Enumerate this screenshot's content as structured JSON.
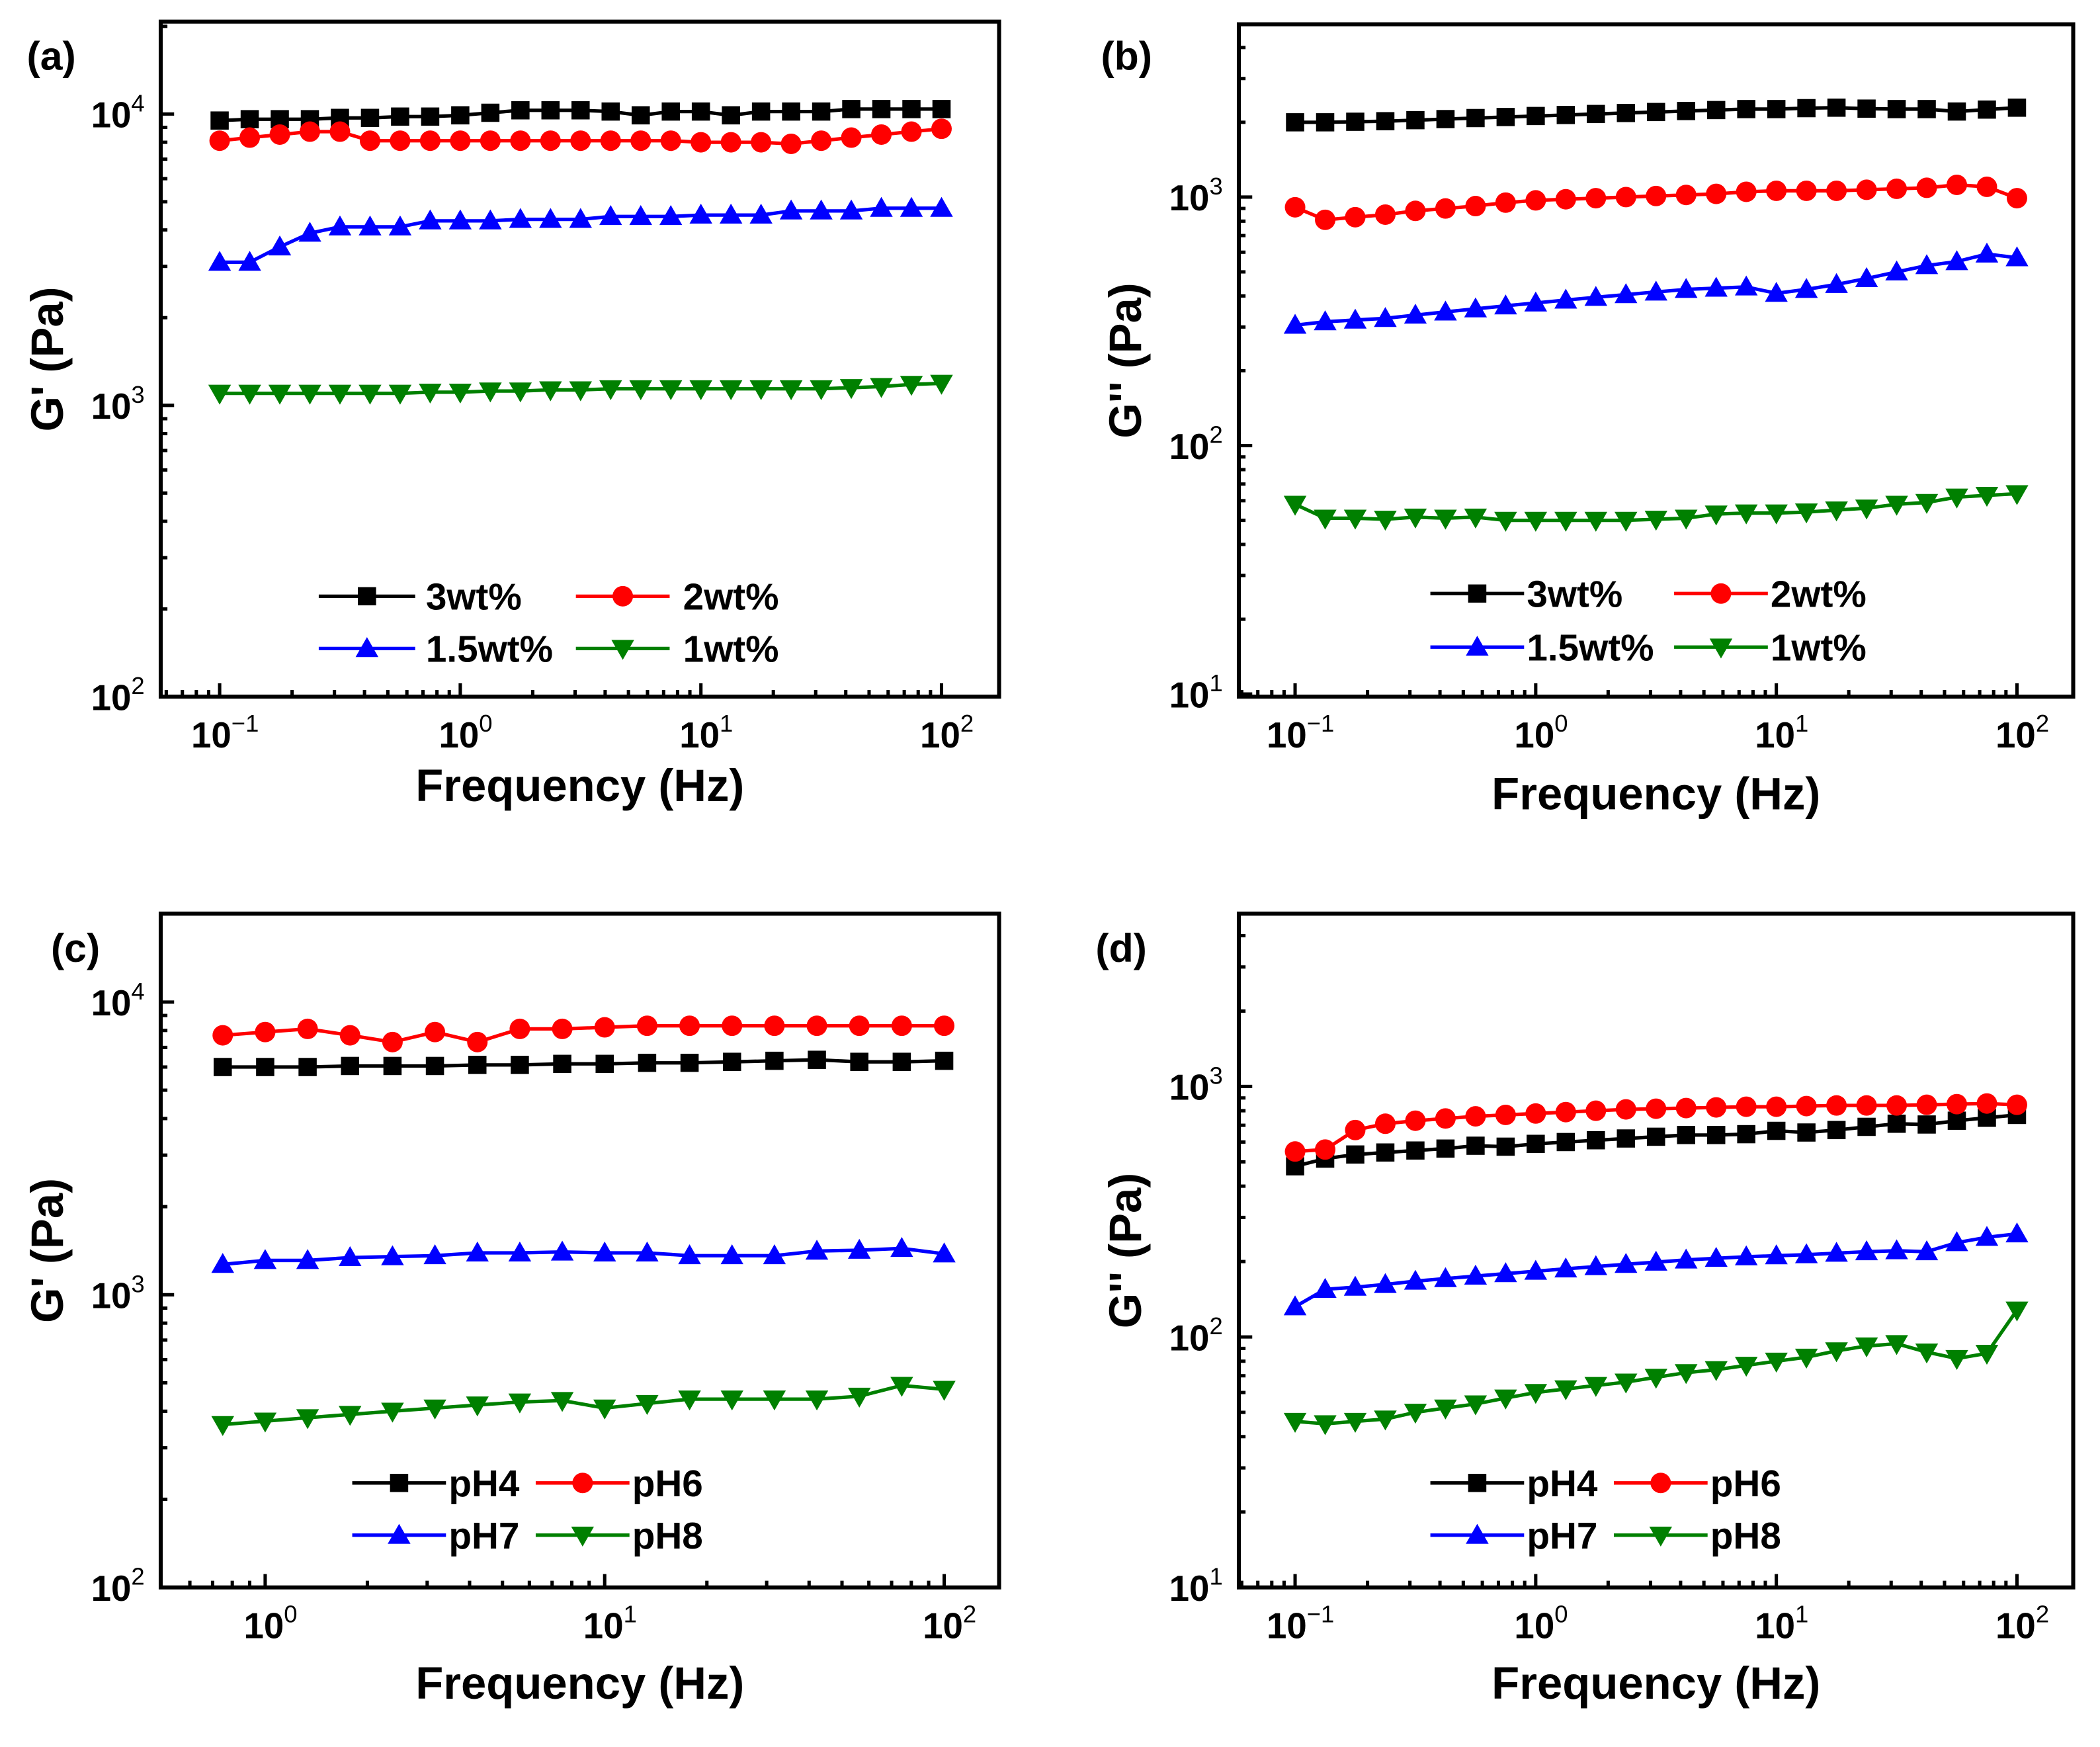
{
  "chart_data": [
    {
      "type": "line",
      "panel_label": "(a)",
      "xlabel": "Frequency (Hz)",
      "ylabel": "G' (Pa)",
      "xscale": "log",
      "yscale": "log",
      "xlim": [
        0.057,
        173
      ],
      "ylim": [
        100,
        20700
      ],
      "xticks": [
        {
          "base": "10",
          "exp": "-1",
          "value": 0.1
        },
        {
          "base": "10",
          "exp": "0",
          "value": 1
        },
        {
          "base": "10",
          "exp": "1",
          "value": 10
        },
        {
          "base": "10",
          "exp": "2",
          "value": 100
        }
      ],
      "yticks": [
        {
          "base": "10",
          "exp": "2",
          "value": 100
        },
        {
          "base": "10",
          "exp": "3",
          "value": 1000
        },
        {
          "base": "10",
          "exp": "4",
          "value": 10000
        }
      ],
      "x_start_exp": -1,
      "n_points": 25,
      "legend_position": "bottom-center",
      "series": [
        {
          "name": "3wt%",
          "color": "#000000",
          "marker": "square",
          "values": [
            9500,
            9600,
            9600,
            9600,
            9700,
            9700,
            9800,
            9800,
            9900,
            10100,
            10300,
            10300,
            10300,
            10200,
            9900,
            10200,
            10200,
            9900,
            10200,
            10200,
            10200,
            10400,
            10400,
            10400,
            10400
          ]
        },
        {
          "name": "2wt%",
          "color": "#ff0000",
          "marker": "circle",
          "values": [
            8100,
            8300,
            8500,
            8700,
            8700,
            8100,
            8100,
            8100,
            8100,
            8100,
            8100,
            8100,
            8100,
            8100,
            8100,
            8100,
            8000,
            8000,
            8000,
            7900,
            8100,
            8300,
            8500,
            8700,
            8900
          ]
        },
        {
          "name": "1.5wt%",
          "color": "#0000ff",
          "marker": "triangle-up",
          "values": [
            3100,
            3100,
            3500,
            3900,
            4100,
            4100,
            4100,
            4300,
            4300,
            4300,
            4350,
            4350,
            4350,
            4450,
            4450,
            4450,
            4500,
            4500,
            4500,
            4650,
            4650,
            4650,
            4750,
            4750,
            4750
          ]
        },
        {
          "name": "1wt%",
          "color": "#008000",
          "marker": "triangle-down",
          "values": [
            1100,
            1100,
            1100,
            1100,
            1100,
            1100,
            1100,
            1110,
            1110,
            1120,
            1120,
            1130,
            1130,
            1140,
            1140,
            1140,
            1140,
            1140,
            1140,
            1140,
            1140,
            1150,
            1160,
            1180,
            1190
          ]
        }
      ]
    },
    {
      "type": "line",
      "panel_label": "(b)",
      "xlabel": "Frequency (Hz)",
      "ylabel": "G'' (Pa)",
      "xscale": "log",
      "yscale": "log",
      "xlim": [
        0.057,
        173
      ],
      "ylim": [
        10,
        4950
      ],
      "xticks": [
        {
          "base": "10",
          "exp": "-1",
          "value": 0.1
        },
        {
          "base": "10",
          "exp": "0",
          "value": 1
        },
        {
          "base": "10",
          "exp": "1",
          "value": 10
        },
        {
          "base": "10",
          "exp": "2",
          "value": 100
        }
      ],
      "yticks": [
        {
          "base": "10",
          "exp": "1",
          "value": 10
        },
        {
          "base": "10",
          "exp": "2",
          "value": 100
        },
        {
          "base": "10",
          "exp": "3",
          "value": 1000
        }
      ],
      "x_start_exp": -1,
      "n_points": 25,
      "legend_position": "bottom-center",
      "series": [
        {
          "name": "3wt%",
          "color": "#000000",
          "marker": "square",
          "values": [
            2000,
            2000,
            2010,
            2020,
            2040,
            2060,
            2080,
            2100,
            2120,
            2140,
            2160,
            2180,
            2200,
            2220,
            2240,
            2260,
            2260,
            2280,
            2290,
            2270,
            2260,
            2260,
            2210,
            2250,
            2290
          ]
        },
        {
          "name": "2wt%",
          "color": "#ff0000",
          "marker": "circle",
          "values": [
            910,
            810,
            830,
            850,
            880,
            900,
            920,
            950,
            970,
            980,
            990,
            1000,
            1010,
            1020,
            1030,
            1050,
            1060,
            1060,
            1060,
            1070,
            1080,
            1090,
            1120,
            1100,
            990
          ]
        },
        {
          "name": "1.5wt%",
          "color": "#0000ff",
          "marker": "triangle-up",
          "values": [
            305,
            315,
            320,
            325,
            335,
            345,
            355,
            365,
            375,
            385,
            395,
            405,
            415,
            425,
            430,
            435,
            410,
            425,
            445,
            470,
            500,
            530,
            550,
            590,
            570
          ]
        },
        {
          "name": "1wt%",
          "color": "#008000",
          "marker": "triangle-down",
          "values": [
            58,
            51,
            51,
            50.5,
            51.5,
            51,
            51.5,
            50,
            50,
            50,
            50,
            50,
            50.5,
            51,
            53,
            53.5,
            53.5,
            54,
            55,
            56,
            58,
            59,
            62,
            63,
            64
          ]
        }
      ]
    },
    {
      "type": "line",
      "panel_label": "(c)",
      "xlabel": "Frequency (Hz)",
      "ylabel": "G' (Pa)",
      "xscale": "log",
      "yscale": "log",
      "xlim": [
        0.49,
        145
      ],
      "ylim": [
        100,
        20700
      ],
      "xticks": [
        {
          "base": "10",
          "exp": "0",
          "value": 1
        },
        {
          "base": "10",
          "exp": "1",
          "value": 10
        },
        {
          "base": "10",
          "exp": "2",
          "value": 100
        }
      ],
      "yticks": [
        {
          "base": "10",
          "exp": "2",
          "value": 100
        },
        {
          "base": "10",
          "exp": "3",
          "value": 1000
        },
        {
          "base": "10",
          "exp": "4",
          "value": 10000
        }
      ],
      "x_start_exp": -0.125,
      "n_points": 18,
      "legend_position": "bottom-center",
      "series": [
        {
          "name": "pH4",
          "color": "#000000",
          "marker": "square",
          "values": [
            6000,
            6000,
            6000,
            6050,
            6050,
            6050,
            6100,
            6100,
            6150,
            6150,
            6200,
            6200,
            6250,
            6300,
            6350,
            6250,
            6250,
            6300
          ]
        },
        {
          "name": "pH6",
          "color": "#ff0000",
          "marker": "circle",
          "values": [
            7700,
            7900,
            8100,
            7700,
            7300,
            7900,
            7300,
            8100,
            8100,
            8200,
            8300,
            8300,
            8300,
            8300,
            8300,
            8300,
            8300,
            8300
          ]
        },
        {
          "name": "pH7",
          "color": "#0000ff",
          "marker": "triangle-up",
          "values": [
            1270,
            1310,
            1310,
            1340,
            1350,
            1360,
            1390,
            1390,
            1400,
            1390,
            1390,
            1360,
            1360,
            1360,
            1410,
            1420,
            1440,
            1380
          ]
        },
        {
          "name": "pH8",
          "color": "#008000",
          "marker": "triangle-down",
          "values": [
            360,
            370,
            380,
            390,
            400,
            410,
            420,
            430,
            435,
            410,
            425,
            440,
            440,
            440,
            440,
            450,
            490,
            475
          ]
        }
      ]
    },
    {
      "type": "line",
      "panel_label": "(d)",
      "xlabel": "Frequency (Hz)",
      "ylabel": "G'' (Pa)",
      "xscale": "log",
      "yscale": "log",
      "xlim": [
        0.057,
        173
      ],
      "ylim": [
        10,
        4900
      ],
      "xticks": [
        {
          "base": "10",
          "exp": "-1",
          "value": 0.1
        },
        {
          "base": "10",
          "exp": "0",
          "value": 1
        },
        {
          "base": "10",
          "exp": "1",
          "value": 10
        },
        {
          "base": "10",
          "exp": "2",
          "value": 100
        }
      ],
      "yticks": [
        {
          "base": "10",
          "exp": "1",
          "value": 10
        },
        {
          "base": "10",
          "exp": "2",
          "value": 100
        },
        {
          "base": "10",
          "exp": "3",
          "value": 1000
        }
      ],
      "x_start_exp": -1,
      "n_points": 25,
      "legend_position": "bottom-center",
      "series": [
        {
          "name": "pH4",
          "color": "#000000",
          "marker": "square",
          "values": [
            480,
            515,
            535,
            545,
            555,
            565,
            580,
            575,
            590,
            600,
            610,
            620,
            630,
            640,
            640,
            645,
            665,
            655,
            670,
            690,
            710,
            705,
            730,
            750,
            770
          ]
        },
        {
          "name": "pH6",
          "color": "#ff0000",
          "marker": "circle",
          "values": [
            550,
            560,
            670,
            710,
            730,
            745,
            760,
            770,
            780,
            790,
            800,
            810,
            815,
            820,
            825,
            830,
            830,
            835,
            840,
            840,
            840,
            845,
            850,
            855,
            845
          ]
        },
        {
          "name": "pH7",
          "color": "#0000ff",
          "marker": "triangle-up",
          "values": [
            132,
            155,
            158,
            162,
            167,
            171,
            175,
            179,
            183,
            187,
            191,
            195,
            199,
            203,
            206,
            209,
            211,
            213,
            216,
            219,
            221,
            219,
            238,
            250,
            258
          ]
        },
        {
          "name": "pH8",
          "color": "#008000",
          "marker": "triangle-down",
          "values": [
            46,
            45,
            46,
            47,
            50,
            52,
            54,
            57,
            60,
            62,
            64,
            66,
            69,
            72,
            74,
            77,
            80,
            83,
            88,
            92,
            94,
            87,
            82,
            86,
            128
          ]
        }
      ]
    }
  ]
}
